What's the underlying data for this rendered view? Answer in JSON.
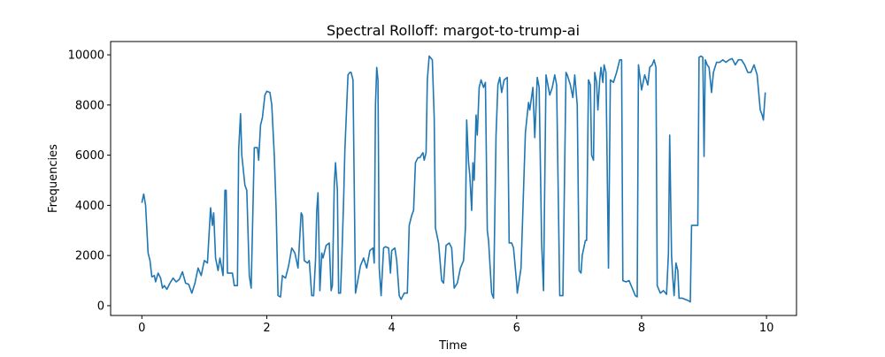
{
  "chart_data": {
    "type": "line",
    "title": "Spectral Rolloff: margot-to-trump-ai",
    "xlabel": "Time",
    "ylabel": "Frequencies",
    "xlim": [
      -0.5,
      10.48
    ],
    "ylim": [
      -390,
      10530
    ],
    "xticks": [
      0,
      2,
      4,
      6,
      8,
      10
    ],
    "yticks": [
      0,
      2000,
      4000,
      6000,
      8000,
      10000
    ],
    "series": [
      {
        "color": "#1f77b4",
        "x": [
          0.0,
          0.03,
          0.06,
          0.1,
          0.13,
          0.16,
          0.2,
          0.22,
          0.26,
          0.3,
          0.33,
          0.36,
          0.4,
          0.45,
          0.5,
          0.55,
          0.6,
          0.65,
          0.7,
          0.75,
          0.8,
          0.85,
          0.9,
          0.95,
          1.0,
          1.05,
          1.1,
          1.13,
          1.15,
          1.18,
          1.22,
          1.25,
          1.3,
          1.33,
          1.35,
          1.37,
          1.45,
          1.48,
          1.53,
          1.55,
          1.58,
          1.6,
          1.65,
          1.68,
          1.72,
          1.75,
          1.8,
          1.85,
          1.87,
          1.9,
          1.93,
          1.97,
          2.0,
          2.05,
          2.08,
          2.12,
          2.15,
          2.18,
          2.22,
          2.25,
          2.3,
          2.35,
          2.4,
          2.45,
          2.5,
          2.55,
          2.57,
          2.6,
          2.65,
          2.68,
          2.72,
          2.75,
          2.78,
          2.8,
          2.82,
          2.85,
          2.88,
          2.9,
          2.95,
          3.0,
          3.03,
          3.05,
          3.08,
          3.1,
          3.13,
          3.15,
          3.18,
          3.2,
          3.23,
          3.25,
          3.3,
          3.33,
          3.35,
          3.38,
          3.42,
          3.45,
          3.5,
          3.55,
          3.6,
          3.65,
          3.7,
          3.72,
          3.74,
          3.76,
          3.78,
          3.8,
          3.83,
          3.87,
          3.9,
          3.95,
          3.98,
          4.0,
          4.05,
          4.08,
          4.12,
          4.15,
          4.2,
          4.25,
          4.28,
          4.32,
          4.35,
          4.38,
          4.42,
          4.45,
          4.5,
          4.52,
          4.55,
          4.57,
          4.6,
          4.65,
          4.68,
          4.7,
          4.75,
          4.8,
          4.83,
          4.87,
          4.92,
          4.96,
          5.0,
          5.05,
          5.1,
          5.15,
          5.18,
          5.2,
          5.23,
          5.25,
          5.28,
          5.3,
          5.32,
          5.35,
          5.37,
          5.4,
          5.43,
          5.47,
          5.5,
          5.53,
          5.55,
          5.6,
          5.63,
          5.67,
          5.7,
          5.73,
          5.76,
          5.8,
          5.85,
          5.88,
          5.92,
          5.95,
          6.0,
          6.01,
          6.07,
          6.14,
          6.19,
          6.21,
          6.26,
          6.29,
          6.33,
          6.36,
          6.4,
          6.43,
          6.47,
          6.53,
          6.57,
          6.61,
          6.64,
          6.69,
          6.74,
          6.79,
          6.81,
          6.86,
          6.9,
          6.93,
          6.97,
          7.0,
          7.03,
          7.05,
          7.1,
          7.12,
          7.15,
          7.18,
          7.2,
          7.23,
          7.25,
          7.28,
          7.3,
          7.33,
          7.35,
          7.38,
          7.4,
          7.43,
          7.47,
          7.5,
          7.55,
          7.6,
          7.65,
          7.68,
          7.7,
          7.75,
          7.8,
          7.85,
          7.9,
          7.93,
          7.95,
          7.97,
          8.0,
          8.05,
          8.1,
          8.13,
          8.17,
          8.2,
          8.23,
          8.25,
          8.3,
          8.35,
          8.4,
          8.43,
          8.45,
          8.48,
          8.5,
          8.52,
          8.55,
          8.58,
          8.6,
          8.65,
          8.7,
          8.75,
          8.78,
          8.8,
          8.85,
          8.9,
          8.92,
          8.95,
          8.98,
          9.0,
          9.02,
          9.05,
          9.08,
          9.12,
          9.15,
          9.2,
          9.25,
          9.3,
          9.35,
          9.4,
          9.45,
          9.5,
          9.55,
          9.6,
          9.65,
          9.7,
          9.75,
          9.8,
          9.85,
          9.9,
          9.93,
          9.95,
          9.98
        ],
        "values": [
          4100,
          4450,
          4000,
          2100,
          1800,
          1150,
          1200,
          950,
          1300,
          1100,
          700,
          800,
          650,
          900,
          1100,
          950,
          1050,
          1350,
          900,
          850,
          500,
          900,
          1500,
          1200,
          1800,
          1700,
          3900,
          3200,
          3700,
          1900,
          1400,
          1900,
          1200,
          4600,
          4600,
          1300,
          1300,
          800,
          800,
          6200,
          7650,
          6000,
          4800,
          4600,
          1200,
          700,
          6300,
          6300,
          5800,
          7200,
          7500,
          8400,
          8550,
          8500,
          8000,
          6000,
          3800,
          400,
          350,
          1200,
          1100,
          1600,
          2300,
          2100,
          1500,
          3700,
          3600,
          1800,
          1700,
          1800,
          400,
          400,
          1800,
          3800,
          4500,
          600,
          2100,
          1900,
          2400,
          2500,
          600,
          800,
          4800,
          5700,
          4600,
          500,
          500,
          1800,
          4200,
          6200,
          9200,
          9300,
          9300,
          9000,
          500,
          900,
          1600,
          1900,
          1500,
          2200,
          2300,
          1700,
          8000,
          9500,
          9000,
          1500,
          400,
          2300,
          2350,
          2300,
          1300,
          2200,
          2300,
          1800,
          400,
          250,
          500,
          500,
          3200,
          3600,
          3800,
          5700,
          5900,
          5900,
          6100,
          5800,
          6100,
          9000,
          9950,
          9800,
          7500,
          3100,
          2500,
          1000,
          900,
          2400,
          2500,
          2300,
          700,
          900,
          1500,
          1800,
          3100,
          7400,
          5700,
          5200,
          3800,
          5700,
          5000,
          7600,
          6800,
          8700,
          9000,
          8700,
          8900,
          3000,
          2600,
          500,
          300,
          6800,
          8800,
          9100,
          8500,
          9000,
          9100,
          2500,
          2500,
          2300,
          900,
          500,
          1500,
          6900,
          8100,
          7800,
          8700,
          6700,
          9100,
          8700,
          2500,
          600,
          9200,
          8400,
          8700,
          9200,
          8800,
          400,
          400,
          9300,
          9200,
          8800,
          8300,
          9200,
          8000,
          1400,
          1300,
          2000,
          2600,
          2600,
          9000,
          8800,
          6000,
          5800,
          9300,
          8900,
          7800,
          9000,
          9500,
          8900,
          9600,
          9300,
          1500,
          9000,
          8900,
          9300,
          9800,
          9800,
          1000,
          950,
          1000,
          700,
          400,
          350,
          9600,
          9200,
          8600,
          9200,
          8800,
          9500,
          9600,
          9800,
          9500,
          800,
          500,
          600,
          450,
          2100,
          6800,
          2000,
          1100,
          400,
          1700,
          1400,
          300,
          300,
          250,
          200,
          150,
          3200,
          3200,
          3200,
          9900,
          9950,
          9900,
          5950,
          9800,
          9600,
          9500,
          8500,
          9300,
          9700,
          9700,
          9800,
          9700,
          9800,
          9850,
          9600,
          9800,
          9800,
          9600,
          9300,
          9300,
          9600,
          9200,
          7800,
          7600,
          7400,
          8500
        ]
      }
    ]
  }
}
